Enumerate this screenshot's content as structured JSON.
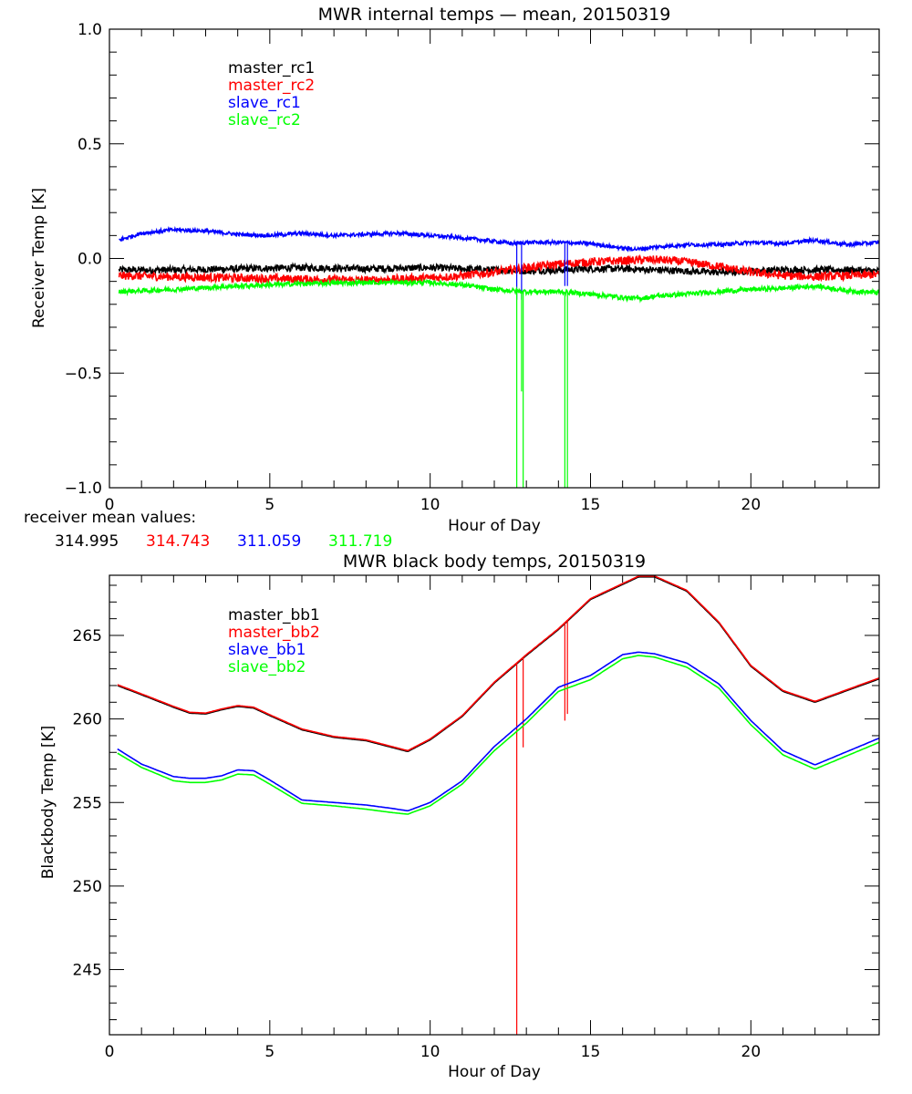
{
  "chart_data": [
    {
      "type": "line",
      "title": "MWR internal temps — mean, 20150319",
      "xlabel": "Hour of Day",
      "ylabel": "Receiver Temp [K]",
      "xlim": [
        0,
        24
      ],
      "ylim": [
        -1.0,
        1.0
      ],
      "xticks": [
        0,
        5,
        10,
        15,
        20
      ],
      "xtick_labels": [
        "0",
        "5",
        "10",
        "15",
        "20"
      ],
      "yticks": [
        1.0,
        0.5,
        0.0,
        -0.5,
        -1.0
      ],
      "ytick_labels": [
        "1.0",
        "0.5",
        "0.0",
        "−0.5",
        "−1.0"
      ],
      "grid": false,
      "legend_position": "top-left",
      "noisy": true,
      "series": [
        {
          "name": "master_rc1",
          "color": "#000000",
          "x": [
            0.3,
            2,
            4,
            6,
            8,
            10,
            11,
            12,
            13,
            14,
            15,
            16,
            17,
            18,
            19,
            20,
            21,
            22,
            23,
            24
          ],
          "y": [
            -0.05,
            -0.05,
            -0.045,
            -0.04,
            -0.045,
            -0.04,
            -0.045,
            -0.05,
            -0.055,
            -0.05,
            -0.045,
            -0.045,
            -0.05,
            -0.055,
            -0.06,
            -0.055,
            -0.05,
            -0.05,
            -0.05,
            -0.055
          ],
          "noise": 0.015
        },
        {
          "name": "master_rc2",
          "color": "#ff0000",
          "x": [
            0.3,
            2,
            4,
            6,
            8,
            9,
            10,
            11,
            12,
            13,
            14,
            15,
            16,
            17,
            18,
            19,
            20,
            21,
            22,
            23,
            24
          ],
          "y": [
            -0.075,
            -0.08,
            -0.085,
            -0.09,
            -0.095,
            -0.09,
            -0.085,
            -0.075,
            -0.06,
            -0.04,
            -0.025,
            -0.015,
            -0.01,
            -0.005,
            -0.015,
            -0.035,
            -0.06,
            -0.075,
            -0.08,
            -0.075,
            -0.07
          ],
          "noise": 0.018
        },
        {
          "name": "slave_rc1",
          "color": "#0000ff",
          "x": [
            0.3,
            1,
            2,
            3,
            4,
            5,
            6,
            7,
            8,
            9,
            10,
            11,
            12,
            12.6,
            13,
            14,
            15,
            16,
            16.5,
            17,
            18,
            19,
            20,
            21,
            22,
            23,
            24
          ],
          "y": [
            0.08,
            0.11,
            0.125,
            0.12,
            0.105,
            0.1,
            0.11,
            0.1,
            0.105,
            0.11,
            0.1,
            0.09,
            0.075,
            0.065,
            0.07,
            0.07,
            0.065,
            0.045,
            0.04,
            0.05,
            0.06,
            0.06,
            0.07,
            0.065,
            0.08,
            0.06,
            0.07
          ],
          "noise": 0.008,
          "dropouts": [
            {
              "x": 12.7,
              "y": -0.18
            },
            {
              "x": 12.85,
              "y": -0.18
            },
            {
              "x": 14.2,
              "y": -0.12
            },
            {
              "x": 14.28,
              "y": -0.12
            }
          ]
        },
        {
          "name": "slave_rc2",
          "color": "#00ff00",
          "x": [
            0.3,
            2,
            4,
            6,
            8,
            10,
            11,
            12,
            13,
            14,
            15,
            16,
            16.5,
            17,
            18,
            19,
            20,
            21,
            22,
            23,
            24
          ],
          "y": [
            -0.145,
            -0.135,
            -0.12,
            -0.11,
            -0.105,
            -0.105,
            -0.115,
            -0.135,
            -0.145,
            -0.145,
            -0.155,
            -0.17,
            -0.175,
            -0.165,
            -0.155,
            -0.145,
            -0.135,
            -0.13,
            -0.12,
            -0.14,
            -0.15
          ],
          "noise": 0.01,
          "dropouts": [
            {
              "x": 12.7,
              "y": -1.0
            },
            {
              "x": 12.85,
              "y": -0.58
            },
            {
              "x": 12.9,
              "y": -1.0
            },
            {
              "x": 14.2,
              "y": -1.0
            },
            {
              "x": 14.28,
              "y": -1.0
            }
          ]
        }
      ],
      "footer_label": "receiver mean values:",
      "mean_values": [
        {
          "value": "314.995",
          "color": "#000000"
        },
        {
          "value": "314.743",
          "color": "#ff0000"
        },
        {
          "value": "311.059",
          "color": "#0000ff"
        },
        {
          "value": "311.719",
          "color": "#00ff00"
        }
      ]
    },
    {
      "type": "line",
      "title": "MWR black body temps, 20150319",
      "xlabel": "Hour of Day",
      "ylabel": "Blackbody Temp [K]",
      "xlim": [
        0,
        24
      ],
      "ylim": [
        241.1,
        268.6
      ],
      "xticks": [
        0,
        5,
        10,
        15,
        20
      ],
      "xtick_labels": [
        "0",
        "5",
        "10",
        "15",
        "20"
      ],
      "yticks": [
        265,
        260,
        255,
        250,
        245
      ],
      "ytick_labels": [
        "265",
        "260",
        "255",
        "250",
        "245"
      ],
      "grid": false,
      "legend_position": "top-left",
      "series": [
        {
          "name": "master_bb1",
          "color": "#000000",
          "x": [
            0.25,
            1,
            2,
            2.5,
            3,
            3.5,
            4,
            4.5,
            5,
            6,
            7,
            8,
            9,
            9.3,
            10,
            11,
            12,
            13,
            14,
            15,
            16,
            16.5,
            17,
            18,
            19,
            20,
            21,
            22,
            23,
            24
          ],
          "y": [
            262.0,
            261.45,
            260.7,
            260.35,
            260.3,
            260.55,
            260.75,
            260.65,
            260.2,
            259.35,
            258.9,
            258.7,
            258.2,
            258.05,
            258.75,
            260.15,
            262.15,
            263.8,
            265.35,
            267.15,
            268.05,
            268.5,
            268.5,
            267.65,
            265.75,
            263.15,
            261.65,
            261.0,
            261.7,
            262.4
          ]
        },
        {
          "name": "master_bb2",
          "color": "#ff0000",
          "x": [
            0.25,
            1,
            2,
            2.5,
            3,
            3.5,
            4,
            4.5,
            5,
            6,
            7,
            8,
            9,
            9.3,
            10,
            11,
            12,
            13,
            14,
            15,
            16,
            16.5,
            17,
            18,
            19,
            20,
            21,
            22,
            23,
            24
          ],
          "y": [
            262.05,
            261.5,
            260.75,
            260.4,
            260.35,
            260.6,
            260.8,
            260.7,
            260.25,
            259.4,
            258.95,
            258.75,
            258.25,
            258.1,
            258.8,
            260.2,
            262.2,
            263.85,
            265.4,
            267.2,
            268.1,
            268.55,
            268.55,
            267.7,
            265.8,
            263.2,
            261.7,
            261.05,
            261.75,
            262.45
          ],
          "dropouts": [
            {
              "x": 12.7,
              "y": 241.1
            },
            {
              "x": 12.9,
              "y": 258.3
            },
            {
              "x": 14.2,
              "y": 259.9
            },
            {
              "x": 14.28,
              "y": 260.3
            }
          ]
        },
        {
          "name": "slave_bb1",
          "color": "#0000ff",
          "x": [
            0.25,
            1,
            2,
            2.5,
            3,
            3.5,
            4,
            4.5,
            5,
            6,
            7,
            8,
            8.8,
            9.3,
            10,
            11,
            12,
            13,
            14,
            15,
            16,
            16.5,
            17,
            18,
            19,
            20,
            21,
            22,
            23,
            24
          ],
          "y": [
            258.2,
            257.3,
            256.55,
            256.45,
            256.45,
            256.6,
            256.95,
            256.9,
            256.35,
            255.15,
            255.0,
            254.85,
            254.65,
            254.5,
            255.0,
            256.3,
            258.35,
            260.0,
            261.9,
            262.6,
            263.85,
            264.0,
            263.9,
            263.35,
            262.1,
            259.9,
            258.1,
            257.25,
            258.05,
            258.85
          ]
        },
        {
          "name": "slave_bb2",
          "color": "#00ff00",
          "x": [
            0.25,
            1,
            2,
            2.5,
            3,
            3.5,
            4,
            4.5,
            5,
            6,
            7,
            8,
            8.8,
            9.3,
            10,
            11,
            12,
            13,
            14,
            15,
            16,
            16.5,
            17,
            18,
            19,
            20,
            21,
            22,
            23,
            24
          ],
          "y": [
            257.95,
            257.1,
            256.3,
            256.2,
            256.2,
            256.35,
            256.7,
            256.65,
            256.1,
            254.95,
            254.8,
            254.6,
            254.4,
            254.3,
            254.8,
            256.1,
            258.1,
            259.75,
            261.65,
            262.35,
            263.6,
            263.8,
            263.7,
            263.1,
            261.85,
            259.65,
            257.85,
            257.0,
            257.8,
            258.6
          ]
        }
      ]
    }
  ]
}
